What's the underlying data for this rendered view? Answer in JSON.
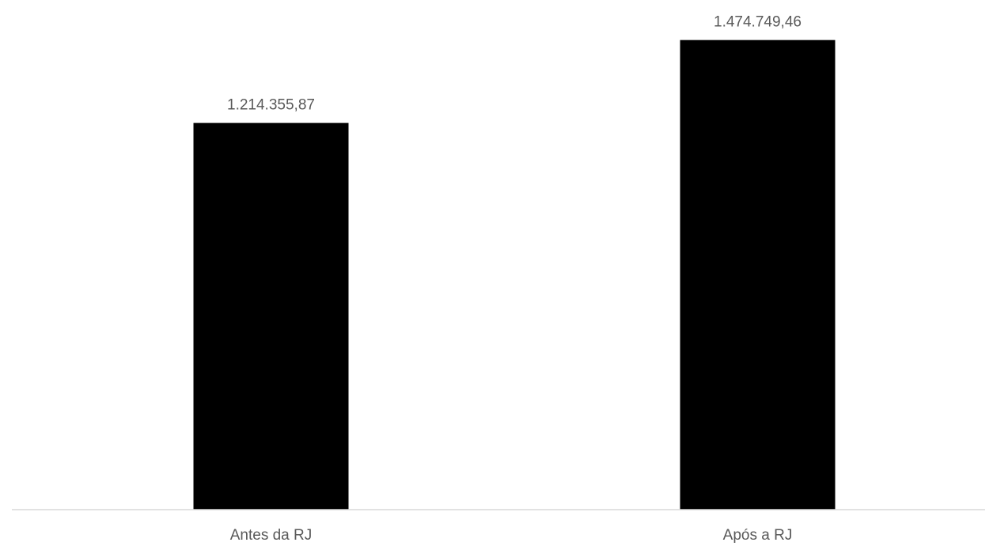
{
  "chart_data": {
    "type": "bar",
    "categories": [
      "Antes da RJ",
      "Após a RJ"
    ],
    "values": [
      1214355.87,
      1474749.46
    ],
    "data_labels": [
      "1.214.355,87",
      "1.474.749,46"
    ],
    "title": "",
    "xlabel": "",
    "ylabel": "",
    "ylim": [
      0,
      1600000
    ],
    "grid": false,
    "legend": "none",
    "bar_color": "#000000",
    "label_color": "#595959",
    "axis_color": "#d9d9d9"
  }
}
